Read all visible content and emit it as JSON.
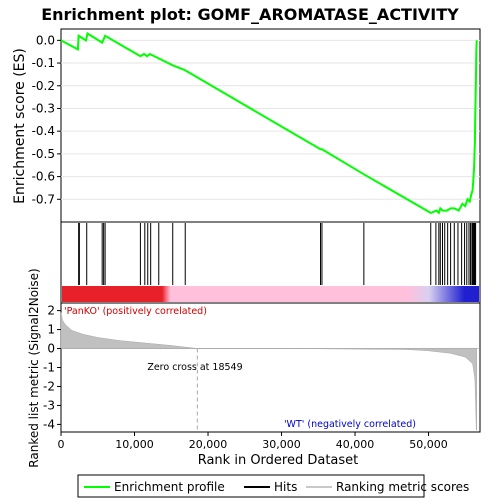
{
  "chart_data": {
    "type": "line",
    "title": "Enrichment plot: GOMF_AROMATASE_ACTIVITY",
    "xlabel": "Rank in Ordered Dataset",
    "xlim": [
      0,
      57000
    ],
    "x_ticks": [
      0,
      10000,
      20000,
      30000,
      40000,
      50000
    ],
    "x_tick_labels": [
      "0",
      "10,000",
      "20,000",
      "30,000",
      "40,000",
      "50,000"
    ],
    "es_panel": {
      "ylabel": "Enrichment score (ES)",
      "ylim": [
        -0.8,
        0.05
      ],
      "y_ticks": [
        0.0,
        -0.1,
        -0.2,
        -0.3,
        -0.4,
        -0.5,
        -0.6,
        -0.7
      ],
      "y_tick_labels": [
        "0.0",
        "-0.1",
        "-0.2",
        "-0.3",
        "-0.4",
        "-0.5",
        "-0.6",
        "-0.7"
      ],
      "series": [
        {
          "name": "Enrichment profile",
          "color": "#00ff00",
          "x": [
            0,
            2300,
            2400,
            3400,
            3600,
            5600,
            6000,
            10800,
            11300,
            11700,
            12100,
            15200,
            16800,
            35300,
            35500,
            41200,
            50300,
            51100,
            51400,
            51600,
            51900,
            52500,
            53000,
            53500,
            54100,
            54600,
            55000,
            55300,
            55600,
            55800,
            56000,
            56100,
            56200,
            56250,
            56300,
            56350,
            56400,
            56450,
            56500,
            56550
          ],
          "y": [
            0.0,
            -0.04,
            0.02,
            0.0,
            0.03,
            -0.01,
            0.02,
            -0.07,
            -0.06,
            -0.07,
            -0.06,
            -0.11,
            -0.13,
            -0.48,
            -0.48,
            -0.59,
            -0.76,
            -0.75,
            -0.76,
            -0.74,
            -0.75,
            -0.75,
            -0.74,
            -0.74,
            -0.75,
            -0.72,
            -0.73,
            -0.7,
            -0.71,
            -0.68,
            -0.66,
            -0.61,
            -0.56,
            -0.5,
            -0.45,
            -0.35,
            -0.25,
            -0.15,
            -0.05,
            0.0
          ]
        }
      ]
    },
    "hits_panel": {
      "hits_label": "Hits",
      "hit_positions": [
        2400,
        2500,
        3500,
        5600,
        5800,
        6000,
        10800,
        11400,
        11800,
        12200,
        13300,
        15200,
        16900,
        35300,
        35500,
        41200,
        50300,
        51000,
        51400,
        51600,
        51900,
        52200,
        52600,
        53000,
        53500,
        54000,
        54500,
        54900,
        55200,
        55500,
        55700,
        55900,
        56000,
        56100,
        56200,
        56300,
        56400
      ],
      "hit_color": "#000000",
      "colorbar_positive_color": "#e8202a",
      "colorbar_mid_color": "#ffc0dc",
      "colorbar_negative_color": "#2020d0"
    },
    "metric_panel": {
      "ylabel": "Ranked list metric (Signal2Noise)",
      "ylim": [
        -4.4,
        2.4
      ],
      "y_ticks": [
        2,
        1,
        0,
        -1,
        -2,
        -3,
        -4
      ],
      "y_tick_labels": [
        "2",
        "1",
        "0",
        "-1",
        "-2",
        "-3",
        "-4"
      ],
      "series": [
        {
          "name": "Ranking metric scores",
          "color": "#c0c0c0",
          "x": [
            0,
            200,
            600,
            1500,
            3000,
            5000,
            8000,
            12000,
            15000,
            18549,
            30000,
            47000,
            50000,
            53000,
            55000,
            56000,
            56300,
            56500,
            56550
          ],
          "y": [
            1.9,
            1.5,
            1.25,
            0.95,
            0.75,
            0.58,
            0.42,
            0.27,
            0.16,
            0.0,
            0.0,
            -0.05,
            -0.12,
            -0.25,
            -0.45,
            -0.8,
            -1.6,
            -4.3,
            -4.3
          ]
        }
      ],
      "zero_cross": 18549,
      "zero_cross_label": "Zero cross at 18549",
      "positive_label": "'PanKO' (positively correlated)",
      "negative_label": "'WT' (negatively correlated)",
      "positive_color": "#cc0000",
      "negative_color": "#0000cc"
    },
    "legend": {
      "placement": "bottom",
      "entries": [
        {
          "label": "Enrichment profile",
          "color": "#00ff00",
          "style": "line"
        },
        {
          "label": "Hits",
          "color": "#000000",
          "style": "line"
        },
        {
          "label": "Ranking metric scores",
          "color": "#c8c8c8",
          "style": "line"
        }
      ]
    }
  }
}
